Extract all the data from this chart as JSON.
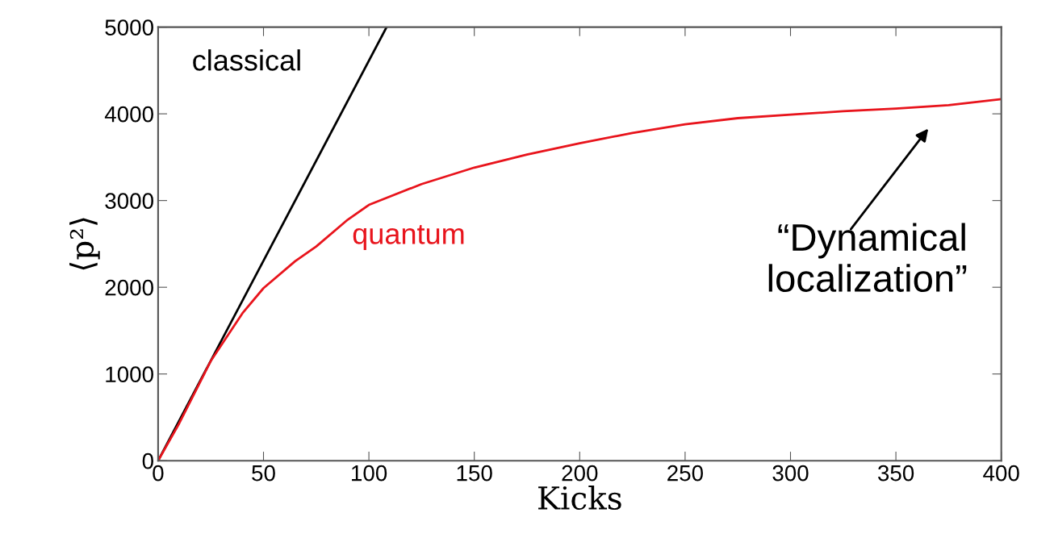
{
  "chart_data": {
    "type": "line",
    "xlabel": "Kicks",
    "ylabel": "⟨p²⟩",
    "xlim": [
      0,
      400
    ],
    "ylim": [
      0,
      5000
    ],
    "xticks": [
      0,
      50,
      100,
      150,
      200,
      250,
      300,
      350,
      400
    ],
    "yticks": [
      0,
      1000,
      2000,
      3000,
      4000,
      5000
    ],
    "grid": false,
    "legend": false,
    "series": [
      {
        "name": "classical",
        "color": "#000000",
        "x": [
          0,
          108.4
        ],
        "values": [
          0,
          5000
        ]
      },
      {
        "name": "quantum",
        "color": "#e8141c",
        "x": [
          0,
          10,
          25,
          40,
          50,
          65,
          75,
          90,
          100,
          125,
          150,
          175,
          200,
          225,
          250,
          275,
          300,
          325,
          350,
          375,
          400
        ],
        "values": [
          0,
          430,
          1150,
          1700,
          1990,
          2300,
          2470,
          2780,
          2950,
          3190,
          3380,
          3530,
          3660,
          3780,
          3880,
          3950,
          3990,
          4030,
          4060,
          4100,
          4170
        ]
      }
    ],
    "annotations": [
      "“Dynamical\nlocalization”"
    ]
  }
}
